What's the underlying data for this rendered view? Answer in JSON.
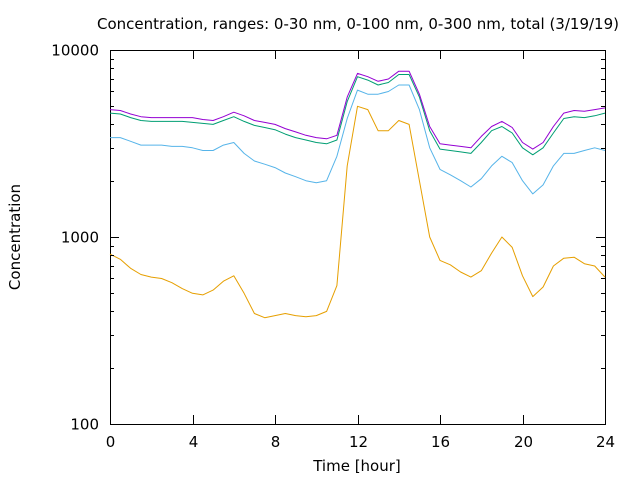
{
  "chart_data": {
    "type": "line",
    "title": "Concentration, ranges: 0-30 nm, 0-100 nm, 0-300 nm, total (3/19/19)",
    "xlabel": "Time [hour]",
    "ylabel": "Concentration",
    "xlim": [
      0,
      24
    ],
    "ylim": [
      100,
      10000
    ],
    "yscale": "log",
    "grid": false,
    "x_ticks": [
      0,
      4,
      8,
      12,
      16,
      20,
      24
    ],
    "x_tick_labels": [
      "0",
      "4",
      "8",
      "12",
      "16",
      "20",
      "24"
    ],
    "y_ticks": [
      100,
      1000,
      10000
    ],
    "y_tick_labels": [
      "100",
      "1000",
      "10000"
    ],
    "x": [
      0,
      0.5,
      1,
      1.5,
      2,
      2.5,
      3,
      3.5,
      4,
      4.5,
      5,
      5.5,
      6,
      6.5,
      7,
      7.5,
      8,
      8.5,
      9,
      9.5,
      10,
      10.5,
      11,
      11.5,
      12,
      12.5,
      13,
      13.5,
      14,
      14.5,
      15,
      15.5,
      16,
      16.5,
      17,
      17.5,
      18,
      18.5,
      19,
      19.5,
      20,
      20.5,
      21,
      21.5,
      22,
      22.5,
      23,
      23.5,
      24
    ],
    "series": [
      {
        "color": "#e69f00",
        "values": [
          810,
          760,
          680,
          630,
          610,
          600,
          570,
          530,
          500,
          490,
          520,
          580,
          620,
          500,
          390,
          370,
          380,
          390,
          380,
          375,
          380,
          400,
          550,
          2400,
          5000,
          4800,
          3700,
          3700,
          4200,
          4000,
          2000,
          1000,
          750,
          710,
          650,
          610,
          660,
          820,
          1000,
          880,
          620,
          480,
          540,
          700,
          770,
          780,
          720,
          700,
          610
        ]
      },
      {
        "color": "#56b4e9",
        "values": [
          3400,
          3400,
          3250,
          3100,
          3100,
          3100,
          3050,
          3050,
          3000,
          2900,
          2900,
          3100,
          3200,
          2800,
          2550,
          2450,
          2350,
          2200,
          2100,
          2000,
          1950,
          2000,
          2700,
          4300,
          6100,
          5800,
          5800,
          6000,
          6500,
          6500,
          4800,
          3000,
          2300,
          2150,
          2000,
          1850,
          2050,
          2400,
          2700,
          2500,
          2000,
          1700,
          1900,
          2400,
          2800,
          2800,
          2900,
          3000,
          2900
        ]
      },
      {
        "color": "#009e73",
        "values": [
          4600,
          4550,
          4350,
          4200,
          4150,
          4150,
          4150,
          4150,
          4100,
          4050,
          4000,
          4200,
          4400,
          4150,
          3950,
          3850,
          3750,
          3550,
          3400,
          3300,
          3200,
          3150,
          3300,
          5300,
          7200,
          6900,
          6500,
          6700,
          7400,
          7400,
          5600,
          3700,
          2950,
          2900,
          2850,
          2800,
          3200,
          3700,
          3900,
          3600,
          3000,
          2750,
          3000,
          3600,
          4300,
          4400,
          4350,
          4450,
          4600
        ]
      },
      {
        "color": "#9400d3",
        "values": [
          4800,
          4750,
          4550,
          4400,
          4350,
          4350,
          4350,
          4350,
          4350,
          4250,
          4200,
          4400,
          4650,
          4450,
          4200,
          4100,
          4000,
          3800,
          3650,
          3500,
          3400,
          3350,
          3500,
          5600,
          7500,
          7200,
          6800,
          7000,
          7700,
          7700,
          5800,
          3900,
          3150,
          3100,
          3050,
          3000,
          3450,
          3900,
          4150,
          3850,
          3200,
          2950,
          3200,
          3900,
          4600,
          4750,
          4700,
          4800,
          4900
        ]
      }
    ]
  }
}
